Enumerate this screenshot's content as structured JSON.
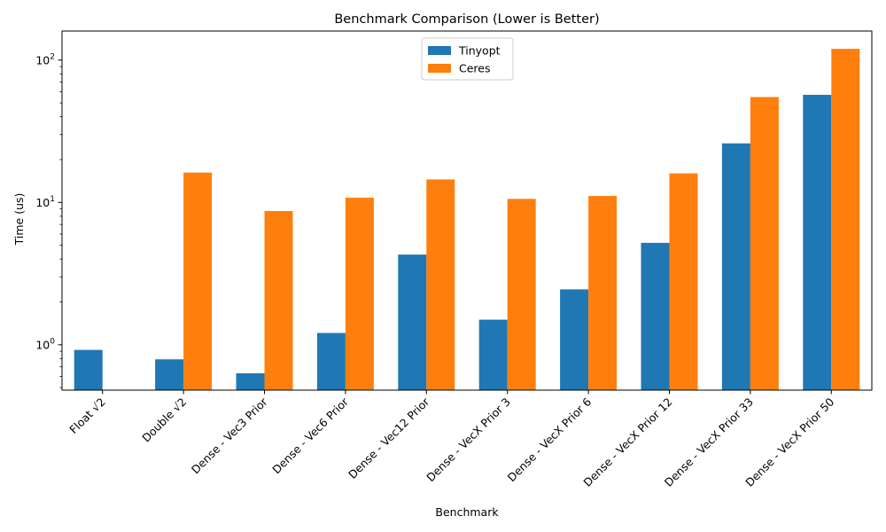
{
  "chart_data": {
    "type": "bar",
    "title": "Benchmark Comparison (Lower is Better)",
    "xlabel": "Benchmark",
    "ylabel": "Time (us)",
    "yscale": "log",
    "ylim": [
      0.48,
      160
    ],
    "yticks": [
      1,
      10,
      100
    ],
    "ytick_labels": [
      {
        "base": "10",
        "exp": "0"
      },
      {
        "base": "10",
        "exp": "1"
      },
      {
        "base": "10",
        "exp": "2"
      }
    ],
    "legend_position": "top-center",
    "grid": false,
    "categories": [
      "Float √2",
      "Double √2",
      "Dense - Vec3 Prior",
      "Dense - Vec6 Prior",
      "Dense - Vec12 Prior",
      "Dense - VecX Prior 3",
      "Dense - VecX Prior 6",
      "Dense - VecX Prior 12",
      "Dense - VecX Prior 33",
      "Dense - VecX Prior 50"
    ],
    "series": [
      {
        "name": "Tinyopt",
        "color": "#1f77b4",
        "values": [
          0.92,
          0.79,
          0.63,
          1.21,
          4.3,
          1.5,
          2.45,
          5.2,
          26,
          57
        ]
      },
      {
        "name": "Ceres",
        "color": "#ff7f0e",
        "values": [
          null,
          16.2,
          8.7,
          10.8,
          14.5,
          10.6,
          11.1,
          16.0,
          55,
          120
        ]
      }
    ]
  }
}
